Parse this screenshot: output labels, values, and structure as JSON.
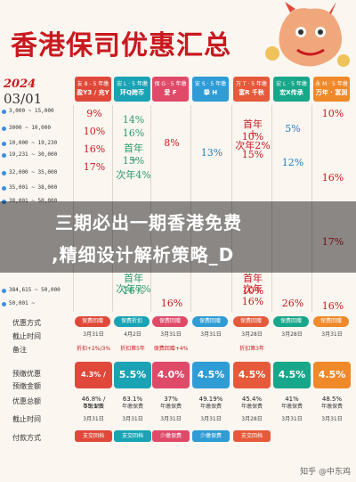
{
  "title": "香港保司优惠汇总",
  "date": {
    "year": "2024",
    "day": "03/01"
  },
  "columns": [
    {
      "top": "友 8 - 5 年缴",
      "name": "盈Y3 / 充Y",
      "color": "#e0493a"
    },
    {
      "top": "宏 L · 5 年缴",
      "name": "环Q跨币",
      "color": "#19a3b5"
    },
    {
      "top": "保 G · 5 年缴",
      "name": "爱 F",
      "color": "#e04a69"
    },
    {
      "top": "安 S · 5 年缴",
      "name": "挚 H",
      "color": "#2f9cd6"
    },
    {
      "top": "万 T · 5 年缴",
      "name": "富R 千秋",
      "color": "#e55a3a"
    },
    {
      "top": "宏 L · 5 年缴",
      "name": "宏X传承",
      "color": "#18a78a"
    },
    {
      "top": "永 M · 5 年缴",
      "name": "万年 · 富润",
      "color": "#f0892a"
    }
  ],
  "rows": [
    {
      "label": "3,000 ~ 15,000"
    },
    {
      "label": "3000 ~ 10,000"
    },
    {
      "label": "10,000 ~ 19,230"
    },
    {
      "label": "19,231 ~ 30,000"
    },
    {
      "label": "32,000 ~ 35,000"
    },
    {
      "label": "35,001 ~ 38,000"
    },
    {
      "label": "38,001 ~ 50,000"
    },
    {
      "label": "384,615 ~ 50,000"
    },
    {
      "label": "50,001 ~"
    }
  ],
  "cells": {
    "c1": [
      "9%",
      "10%",
      "16%",
      "17%"
    ],
    "c2": [
      "14%",
      "16%",
      "首年15%",
      "+",
      "次年4%"
    ],
    "c3": [
      "8%"
    ],
    "c4": [
      "13%"
    ],
    "c5": [
      "首年10%",
      "+",
      "次年2%",
      "15%"
    ],
    "c6": [
      "5%",
      "12%"
    ],
    "c7": [
      "10%",
      "16%",
      "17%",
      "16%"
    ],
    "c2b": [
      "首年16%",
      "次年7%"
    ],
    "c5b": [
      "首年10%",
      "次年16%"
    ],
    "c6b": [
      "26%"
    ],
    "c3b": [
      "16%"
    ]
  },
  "watermark": {
    "line1": "三期必出一期香港免费",
    "line2": ",精细设计解析策略_D"
  },
  "lower_labels": [
    "优惠方式",
    "截止时间",
    "备注",
    "预缴优惠",
    "预缴金额",
    "优惠总额",
    "截止时间",
    "付款方式"
  ],
  "chips": [
    "保费回赠",
    "保费折扣",
    "保费回赠",
    "保费回赠",
    "保费回赠",
    "保费回赠",
    "保费回赠"
  ],
  "deadlines": [
    "3月31日",
    "4月2日",
    "3月31日",
    "3月31日",
    "3月28日",
    "3月28日",
    "3月31日"
  ],
  "notes": [
    "折扣+2%/3%",
    "折扣第5年",
    "保费回赠+4%",
    "",
    "折扣第3年",
    "",
    ""
  ],
  "prepay": [
    "4.3% / 5%",
    "5.5%",
    "4.0%",
    "4.5%",
    "4.5%",
    "4.5%",
    "4.5%"
  ],
  "prepay_amount": [
    "",
    "",
    "",
    "",
    "",
    "",
    ""
  ],
  "totals": [
    "46.8% / 55.1%",
    "63.1%",
    "37%",
    "49.19%",
    "45.4%",
    "41%",
    "48.5%"
  ],
  "total_sub": [
    "年缴保费",
    "年缴保费",
    "年缴保费",
    "年缴保费",
    "年缴保费",
    "年缴保费",
    "年缴保费"
  ],
  "end": [
    "3月31日",
    "3月31日",
    "3月31日",
    "3月31日",
    "3月28日",
    "3月31日",
    "3月31日"
  ],
  "pay": [
    "支交回档",
    "支交回档",
    "少缴保费",
    "少缴保费",
    "支交回档",
    "",
    ""
  ],
  "credit": "知乎 @中东鸡"
}
